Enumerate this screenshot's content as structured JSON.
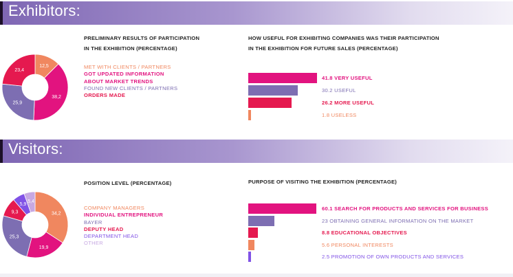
{
  "sections": [
    {
      "id": "exhibitors",
      "title": "Exhibitors:",
      "left_heading": [
        "PRELIMINARY RESULTS OF PARTICIPATION",
        "IN THE EXHIBITION (PERCENTAGE)"
      ],
      "right_heading": [
        "HOW USEFUL FOR EXHIBITING COMPANIES WAS THEIR PARTICIPATION",
        "IN THE EXHIBITION FOR FUTURE SALES (PERCENTAGE)"
      ]
    },
    {
      "id": "visitors",
      "title": "Visitors:",
      "left_heading": [
        "POSITION LEVEL (PERCENTAGE)"
      ],
      "right_heading": [
        "PURPOSE OF VISITING THE EXHIBITION (PERCENTAGE)"
      ]
    }
  ],
  "colors": {
    "orange": "#f0875f",
    "magenta": "#e2137f",
    "purple": "#7d6eb2",
    "red": "#e5194f",
    "violet": "#8052e6",
    "lavender": "#c7a8e2",
    "banner_dark": "#1c1028"
  },
  "chart_data": [
    {
      "type": "pie",
      "variant": "donut",
      "title": "PRELIMINARY RESULTS OF PARTICIPATION IN THE EXHIBITION (PERCENTAGE)",
      "slices": [
        {
          "label": "MET WITH CLIENTS / PARTNERS",
          "value": 12.5,
          "display": "12,5",
          "color": "#f0875f",
          "legend_bold": false
        },
        {
          "label": "GOT UPDATED INFORMATION ABOUT MARKET TRENDS",
          "legend_lines": [
            "GOT UPDATED INFORMATION",
            "ABOUT MARKET TRENDS"
          ],
          "value": 38.2,
          "display": "38,2",
          "color": "#e2137f",
          "legend_bold": true
        },
        {
          "label": "FOUND NEW CLIENTS / PARTNERS",
          "value": 25.9,
          "display": "25,9",
          "color": "#7d6eb2",
          "legend_bold": false
        },
        {
          "label": "ORDERS MADE",
          "value": 23.4,
          "display": "23,4",
          "color": "#e5194f",
          "legend_bold": true
        }
      ]
    },
    {
      "type": "bar",
      "orientation": "horizontal",
      "title": "HOW USEFUL FOR EXHIBITING COMPANIES WAS THEIR PARTICIPATION IN THE EXHIBITION FOR FUTURE SALES (PERCENTAGE)",
      "bars": [
        {
          "label": "41.8 VERY USEFUL",
          "value": 41.8,
          "color": "#e2137f",
          "bold": true
        },
        {
          "label": "30.2 USEFUL",
          "value": 30.2,
          "color": "#7d6eb2",
          "bold": false
        },
        {
          "label": "26.2 MORE USEFUL",
          "value": 26.2,
          "color": "#e5194f",
          "bold": true
        },
        {
          "label": "1.8 USELESS",
          "value": 1.8,
          "color": "#f0875f",
          "bold": false
        }
      ]
    },
    {
      "type": "pie",
      "variant": "donut",
      "title": "POSITION LEVEL (PERCENTAGE)",
      "slices": [
        {
          "label": "COMPANY MANAGERS",
          "value": 34.2,
          "display": "34,2",
          "color": "#f0875f",
          "legend_bold": false
        },
        {
          "label": "INDIVIDUAL ENTREPRENEUR",
          "value": 19.9,
          "display": "19,9",
          "color": "#e2137f",
          "legend_bold": true
        },
        {
          "label": "BAYER",
          "value": 25.3,
          "display": "25,3",
          "color": "#7d6eb2",
          "legend_bold": false
        },
        {
          "label": "DEPUTY HEAD",
          "value": 9.3,
          "display": "9,3",
          "color": "#e5194f",
          "legend_bold": true
        },
        {
          "label": "DEPARTMENT HEAD",
          "value": 5.9,
          "display": "5,9",
          "color": "#8052e6",
          "legend_bold": false
        },
        {
          "label": "OTHER",
          "value": 5.4,
          "display": "5,4",
          "color": "#c7a8e2",
          "legend_bold": false
        }
      ]
    },
    {
      "type": "bar",
      "orientation": "horizontal",
      "title": "PURPOSE OF VISITING THE EXHIBITION (PERCENTAGE)",
      "bars": [
        {
          "label": "60.1 SEARCH FOR PRODUCTS AND SERVICES FOR BUSINESS",
          "value": 60.1,
          "color": "#e2137f",
          "bold": true
        },
        {
          "label": "23 OBTAINING GENERAL INFORMATION ON THE MARKET",
          "value": 23,
          "color": "#7d6eb2",
          "bold": false
        },
        {
          "label": "8.8 EDUCATIONAL OBJECTIVES",
          "value": 8.8,
          "color": "#e5194f",
          "bold": true
        },
        {
          "label": "5.6 PERSONAL INTERESTS",
          "value": 5.6,
          "color": "#f0875f",
          "bold": false
        },
        {
          "label": "2.5 PROMOTION OF OWN PRODUCTS AND SERVICES",
          "value": 2.5,
          "color": "#8052e6",
          "bold": false
        }
      ]
    }
  ]
}
